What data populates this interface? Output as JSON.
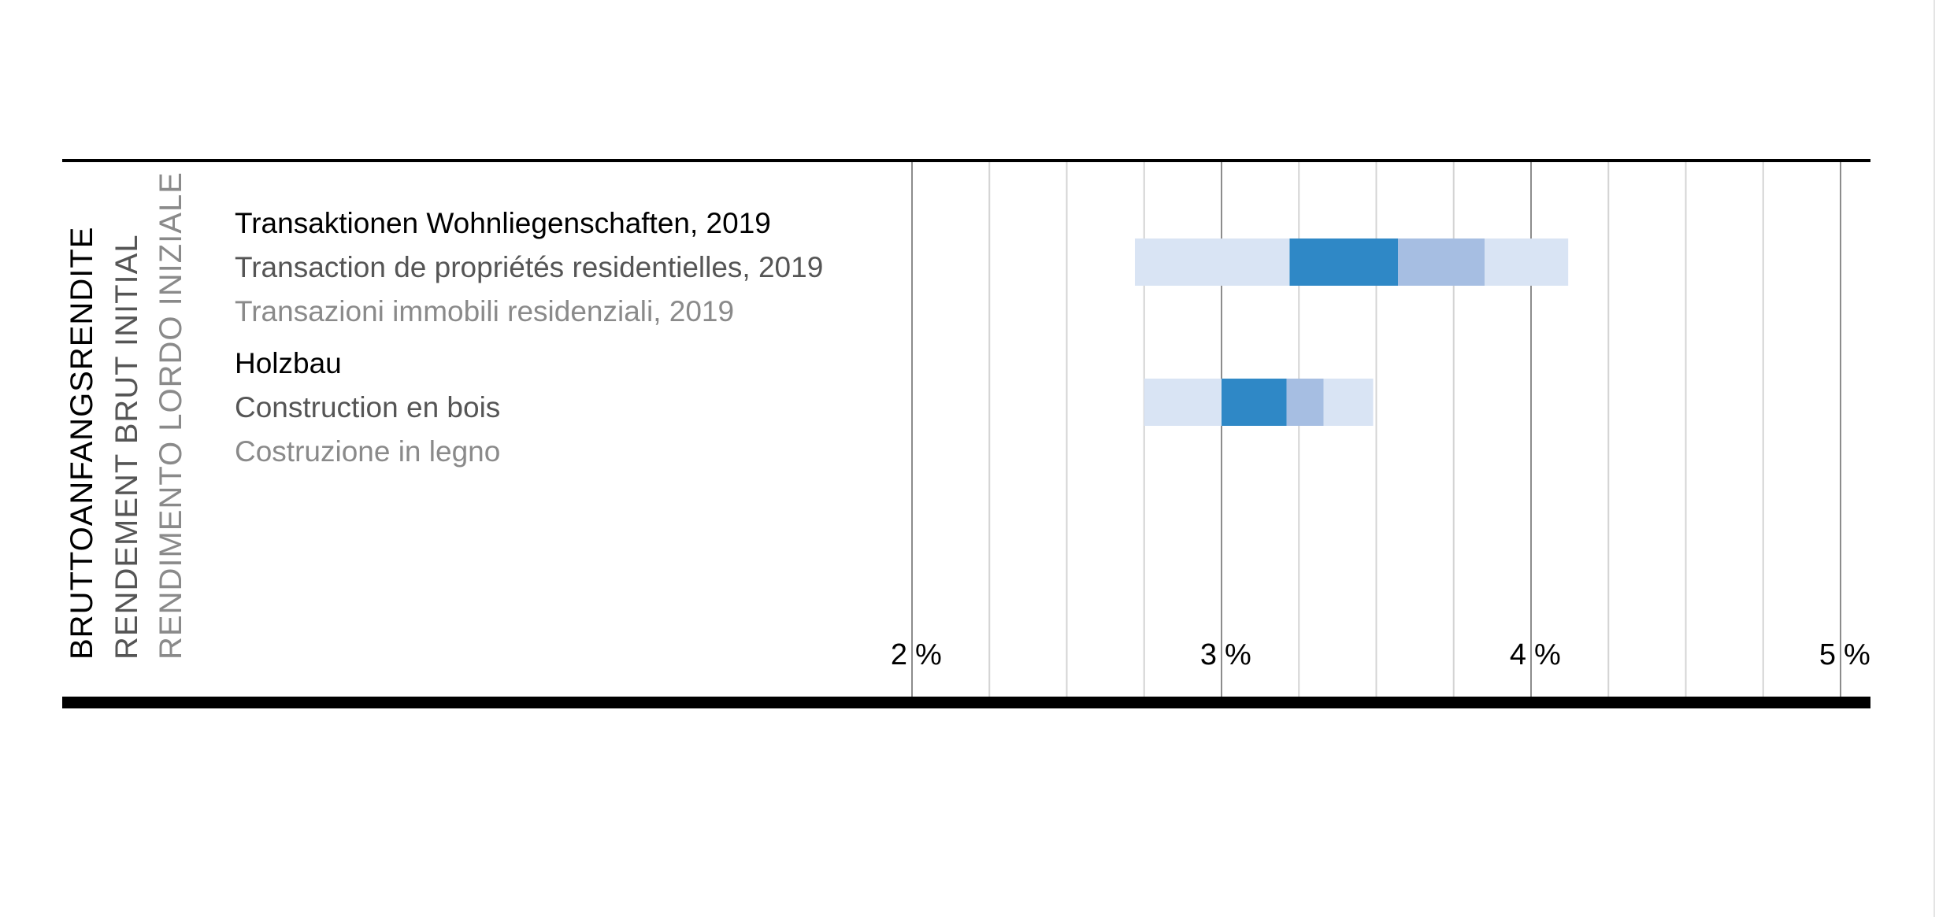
{
  "chart_data": {
    "type": "bar",
    "subtype": "horizontal-range-bands",
    "ylabel_lines": [
      "BRUTTOANFANGSRENDITE",
      "RENDEMENT BRUT INITIAL",
      "RENDIMENTO LORDO INIZIALE"
    ],
    "xlim": [
      2,
      5
    ],
    "xticks": [
      {
        "number": "2",
        "unit": "%"
      },
      {
        "number": "3",
        "unit": "%"
      },
      {
        "number": "4",
        "unit": "%"
      },
      {
        "number": "5",
        "unit": "%"
      }
    ],
    "grid": true,
    "minor_step": 0.25,
    "colors": {
      "outer": "#d9e4f4",
      "inner_low": "#2f88c6",
      "inner_high": "#a6bee2",
      "text1": "#000000",
      "text2": "#555555",
      "text3": "#8a8a8a"
    },
    "series": [
      {
        "labels": [
          "Transaktionen Wohnliegenschaften, 2019",
          "Transaction de propriétés residentielles, 2019",
          "Transazioni immobili residenziali, 2019"
        ],
        "boundaries": [
          2.72,
          3.22,
          3.57,
          3.85,
          4.12
        ]
      },
      {
        "labels": [
          "Holzbau",
          "Construction en bois",
          "Costruzione in legno"
        ],
        "boundaries": [
          2.75,
          3.0,
          3.21,
          3.33,
          3.49
        ]
      }
    ]
  }
}
